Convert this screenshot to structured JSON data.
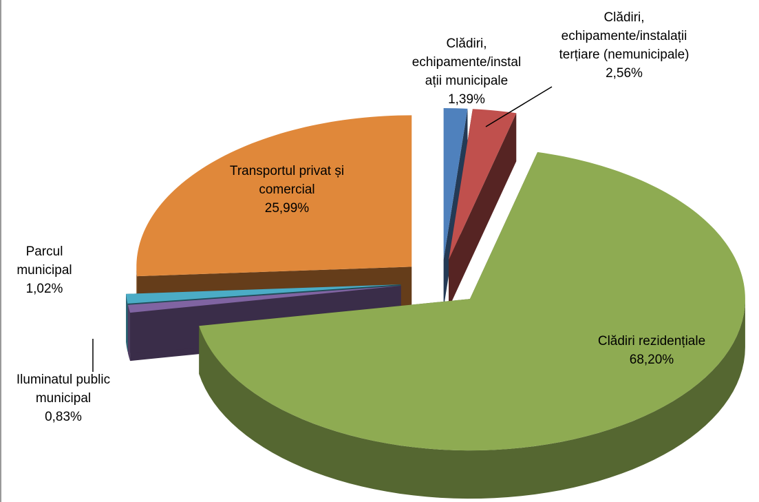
{
  "chart_data": {
    "type": "pie3d",
    "categories": [
      "Clădiri, echipamente/instalații municipale",
      "Clădiri, echipamente/instalații terțiare (nemunicipale)",
      "Clădiri rezidențiale",
      "Iluminatul public municipal",
      "Parcul municipal",
      "Transportul privat și comercial"
    ],
    "values": [
      1.39,
      2.56,
      68.2,
      0.83,
      1.02,
      25.99
    ],
    "value_labels": [
      "1,39%",
      "2,56%",
      "68,20%",
      "0,83%",
      "1,02%",
      "25,99%"
    ],
    "colors": [
      "#4f81bd",
      "#c0504d",
      "#8eab52",
      "#8064a2",
      "#4bacc6",
      "#e0883a"
    ]
  }
}
